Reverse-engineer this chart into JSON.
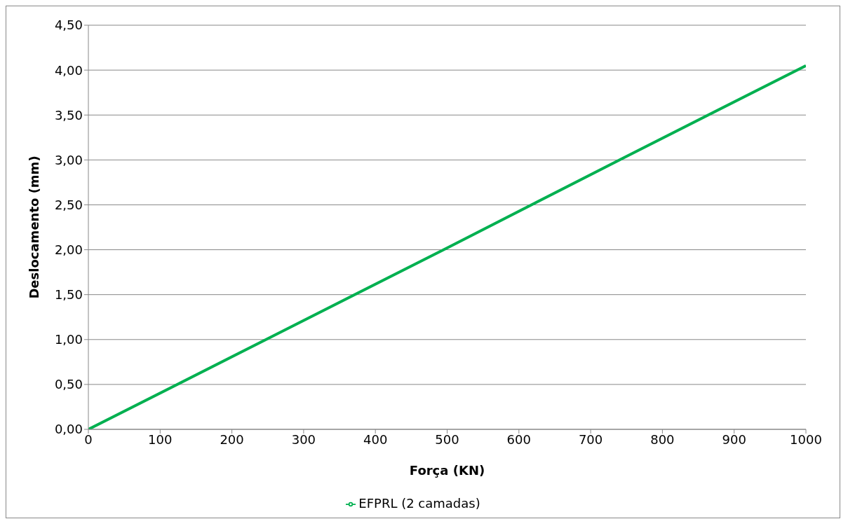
{
  "chart_data": {
    "type": "line",
    "xlabel": "Força (KN)",
    "ylabel": "Deslocamento (mm)",
    "x": [
      0,
      250,
      500,
      750,
      1000
    ],
    "series": [
      {
        "name": "EFPRL (2 camadas)",
        "color": "#00b050",
        "values": [
          0,
          1.01,
          2.02,
          3.04,
          4.05
        ]
      }
    ],
    "xlim": [
      0,
      1000
    ],
    "xticks": [
      0,
      100,
      200,
      300,
      400,
      500,
      600,
      700,
      800,
      900,
      1000
    ],
    "ylim": [
      0,
      4.5
    ],
    "yticks": [
      {
        "value": 0,
        "label": "0,00"
      },
      {
        "value": 0.5,
        "label": "0,50"
      },
      {
        "value": 1,
        "label": "1,00"
      },
      {
        "value": 1.5,
        "label": "1,50"
      },
      {
        "value": 2,
        "label": "2,00"
      },
      {
        "value": 2.5,
        "label": "2,50"
      },
      {
        "value": 3,
        "label": "3,00"
      },
      {
        "value": 3.5,
        "label": "3,50"
      },
      {
        "value": 4,
        "label": "4,00"
      },
      {
        "value": 4.5,
        "label": "4,50"
      }
    ],
    "grid": "y",
    "legend": "bottom",
    "marker": "none",
    "line_style": "solid"
  }
}
